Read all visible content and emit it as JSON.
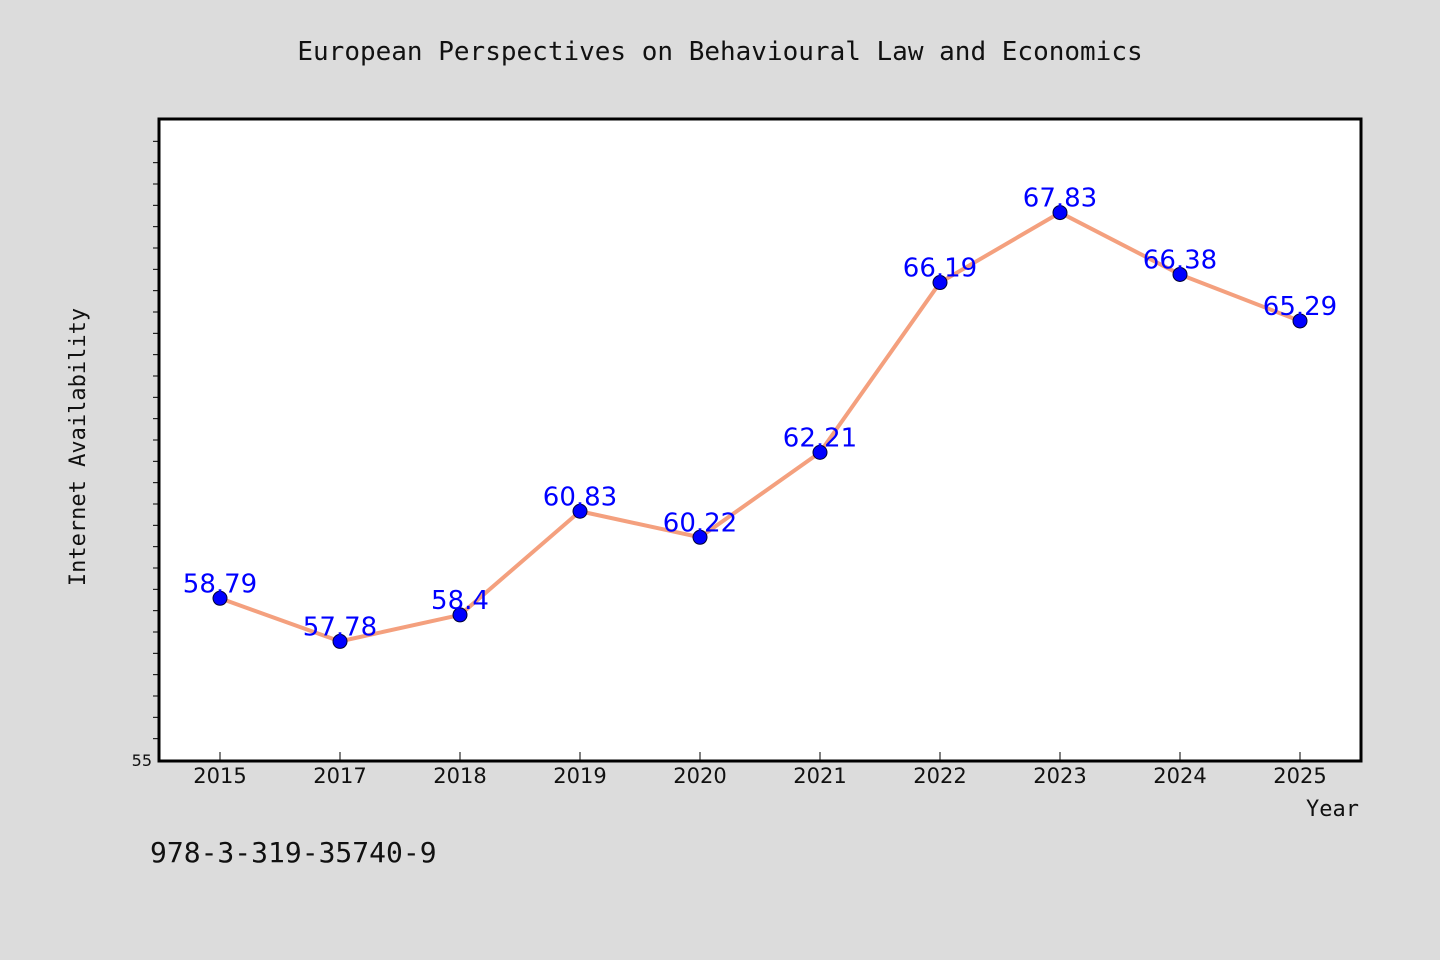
{
  "chart_data": {
    "type": "line",
    "title": "European Perspectives on Behavioural Law and Economics",
    "xlabel": "Year",
    "ylabel": "Internet Availability",
    "categories": [
      "2015",
      "2017",
      "2018",
      "2019",
      "2020",
      "2021",
      "2022",
      "2023",
      "2024",
      "2025"
    ],
    "series": [
      {
        "values": [
          58.79,
          57.78,
          58.4,
          60.83,
          60.22,
          62.21,
          66.19,
          67.83,
          66.38,
          65.29
        ],
        "line_color": "#f4a07e",
        "marker_color": "#0000ff"
      }
    ],
    "y_tick_labels": [
      "55"
    ],
    "ylim": [
      55,
      70
    ],
    "grid": false,
    "legend": "none"
  },
  "footnote": "978-3-319-35740-9"
}
